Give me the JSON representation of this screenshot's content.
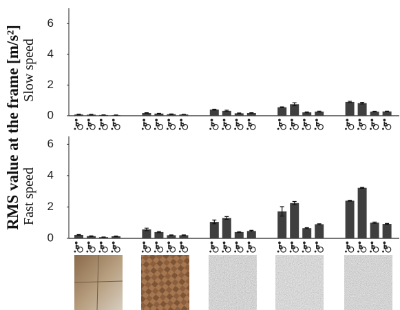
{
  "chart_data": [
    {
      "type": "bar",
      "title": "Slow speed",
      "ylabel": "RMS value at the frame [m/s²]",
      "categories": [
        null,
        null,
        null,
        null,
        null
      ],
      "series": [
        {
          "color": "#3f3f3f",
          "values": [
            [
              0.08,
              0.07,
              0.05,
              0.04
            ],
            [
              0.18,
              0.14,
              0.1,
              0.08
            ],
            [
              0.4,
              0.32,
              0.16,
              0.18
            ],
            [
              0.55,
              0.75,
              0.22,
              0.27
            ],
            [
              0.9,
              0.82,
              0.27,
              0.28
            ]
          ],
          "errors": [
            [
              0.02,
              0.02,
              0.01,
              0.01
            ],
            [
              0.02,
              0.02,
              0.02,
              0.01
            ],
            [
              0.03,
              0.04,
              0.02,
              0.02
            ],
            [
              0.03,
              0.1,
              0.03,
              0.03
            ],
            [
              0.04,
              0.05,
              0.02,
              0.02
            ]
          ]
        }
      ],
      "ylim": [
        0,
        7
      ],
      "yticks": [
        0,
        2,
        4,
        6
      ]
    },
    {
      "type": "bar",
      "title": "Fast speed",
      "categories": [
        null,
        null,
        null,
        null,
        null
      ],
      "series": [
        {
          "color": "#3f3f3f",
          "values": [
            [
              0.22,
              0.14,
              0.08,
              0.13
            ],
            [
              0.57,
              0.4,
              0.2,
              0.2
            ],
            [
              1.05,
              1.3,
              0.4,
              0.47
            ],
            [
              1.72,
              2.25,
              0.65,
              0.9
            ],
            [
              2.4,
              3.22,
              1.0,
              0.92
            ]
          ],
          "errors": [
            [
              0.02,
              0.02,
              0.01,
              0.02
            ],
            [
              0.08,
              0.04,
              0.02,
              0.02
            ],
            [
              0.12,
              0.09,
              0.03,
              0.04
            ],
            [
              0.3,
              0.1,
              0.03,
              0.03
            ],
            [
              0.03,
              0.03,
              0.04,
              0.03
            ]
          ]
        }
      ],
      "ylim": [
        0,
        6.5
      ],
      "yticks": [
        0,
        2,
        4,
        6
      ]
    }
  ]
}
